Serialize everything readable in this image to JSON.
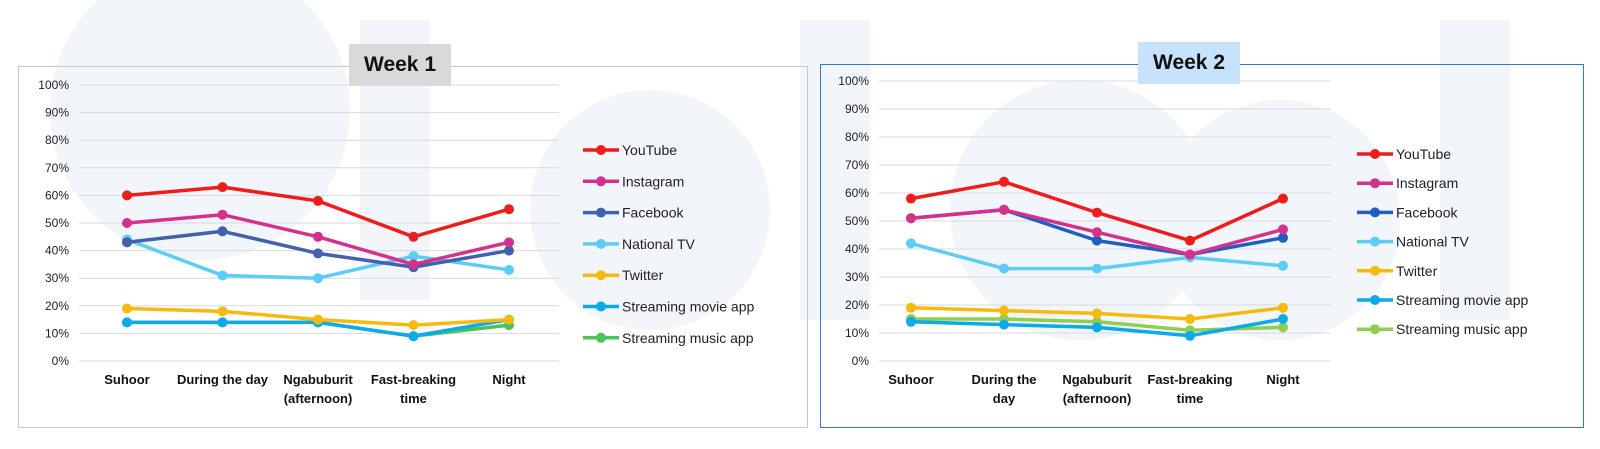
{
  "colors": {
    "YouTube": "#ee1c1c",
    "Instagram": "#d4318e",
    "Facebook": "#4262ad",
    "Facebook_week2": "#1f5fbf",
    "National TV": "#5ccdf5",
    "Twitter": "#f8b90f",
    "Streaming movie app": "#0aabe8",
    "Streaming music app": "#4cc25b",
    "Streaming music app_week2": "#8fcf4f",
    "watermark": "#f1f4fa"
  },
  "chart_data": [
    {
      "type": "line",
      "title": "Week 1",
      "categories": [
        [
          "Suhoor"
        ],
        [
          "During the day"
        ],
        [
          "Ngabuburit",
          "(afternoon)"
        ],
        [
          "Fast-breaking",
          "time"
        ],
        [
          "Night"
        ]
      ],
      "yticks": [
        "0%",
        "10%",
        "20%",
        "30%",
        "40%",
        "50%",
        "60%",
        "70%",
        "80%",
        "90%",
        "100%"
      ],
      "ylim": [
        0,
        100
      ],
      "grid": true,
      "legend_position": "right",
      "series": [
        {
          "name": "YouTube",
          "values": [
            60,
            63,
            58,
            45,
            55
          ]
        },
        {
          "name": "Instagram",
          "values": [
            50,
            53,
            45,
            35,
            43
          ]
        },
        {
          "name": "Facebook",
          "values": [
            43,
            47,
            39,
            34,
            40
          ]
        },
        {
          "name": "National TV",
          "values": [
            44,
            31,
            30,
            38,
            33
          ]
        },
        {
          "name": "Twitter",
          "values": [
            19,
            18,
            15,
            13,
            15
          ]
        },
        {
          "name": "Streaming movie app",
          "values": [
            14,
            14,
            14,
            9,
            15
          ]
        },
        {
          "name": "Streaming music app",
          "values": [
            14,
            14,
            14,
            9,
            13
          ]
        }
      ]
    },
    {
      "type": "line",
      "title": "Week 2",
      "categories": [
        [
          "Suhoor"
        ],
        [
          "During the",
          "day"
        ],
        [
          "Ngabuburit",
          "(afternoon)"
        ],
        [
          "Fast-breaking",
          "time"
        ],
        [
          "Night"
        ]
      ],
      "yticks": [
        "0%",
        "10%",
        "20%",
        "30%",
        "40%",
        "50%",
        "60%",
        "70%",
        "80%",
        "90%",
        "100%"
      ],
      "ylim": [
        0,
        100
      ],
      "grid": true,
      "legend_position": "right",
      "series": [
        {
          "name": "YouTube",
          "values": [
            58,
            64,
            53,
            43,
            58
          ]
        },
        {
          "name": "Instagram",
          "values": [
            51,
            54,
            46,
            38,
            47
          ]
        },
        {
          "name": "Facebook",
          "values": [
            51,
            54,
            43,
            38,
            44
          ]
        },
        {
          "name": "National TV",
          "values": [
            42,
            33,
            33,
            37,
            34
          ]
        },
        {
          "name": "Twitter",
          "values": [
            19,
            18,
            17,
            15,
            19
          ]
        },
        {
          "name": "Streaming movie app",
          "values": [
            14,
            13,
            12,
            9,
            15
          ]
        },
        {
          "name": "Streaming music app",
          "values": [
            15,
            15,
            14,
            11,
            12
          ]
        }
      ]
    }
  ]
}
